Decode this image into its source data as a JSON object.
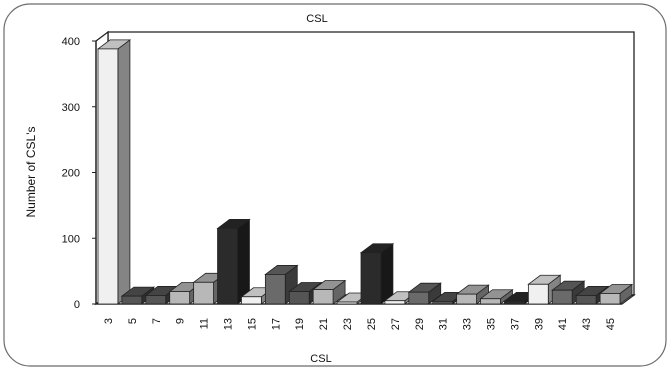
{
  "chart_data": {
    "type": "bar",
    "title": "CSL",
    "xlabel": "CSL",
    "ylabel": "Number of CSL's",
    "ylim": [
      0,
      400
    ],
    "yticks": [
      0,
      100,
      200,
      300,
      400
    ],
    "grid": false,
    "legend": "none",
    "categories": [
      "3",
      "5",
      "7",
      "9",
      "11",
      "13",
      "15",
      "17",
      "19",
      "21",
      "23",
      "25",
      "27",
      "29",
      "31",
      "33",
      "35",
      "37",
      "39",
      "41",
      "43",
      "45"
    ],
    "values": [
      388,
      12,
      13,
      19,
      33,
      115,
      11,
      45,
      19,
      22,
      3,
      78,
      5,
      18,
      4,
      15,
      8,
      4,
      30,
      21,
      13,
      16
    ],
    "bar_shades": [
      "#f0f0f0",
      "#555555",
      "#555555",
      "#b8b8b8",
      "#b8b8b8",
      "#2b2b2b",
      "#f0f0f0",
      "#6a6a6a",
      "#555555",
      "#b8b8b8",
      "#f0f0f0",
      "#2b2b2b",
      "#f0f0f0",
      "#6a6a6a",
      "#555555",
      "#b8b8b8",
      "#b8b8b8",
      "#2b2b2b",
      "#f0f0f0",
      "#6a6a6a",
      "#555555",
      "#b8b8b8"
    ]
  }
}
